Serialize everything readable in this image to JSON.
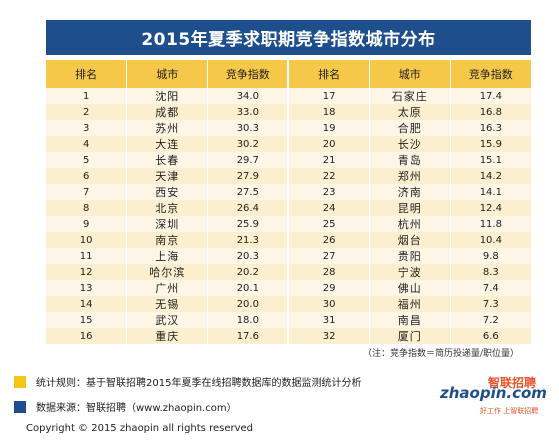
{
  "title": "2015年夏季求职期竞争指数城市分布",
  "table": {
    "headers": [
      "排名",
      "城市",
      "竞争指数",
      "排名",
      "城市",
      "竞争指数"
    ],
    "rows": [
      [
        "1",
        "沈阳",
        "34.0",
        "17",
        "石家庄",
        "17.4"
      ],
      [
        "2",
        "成都",
        "33.0",
        "18",
        "太原",
        "16.8"
      ],
      [
        "3",
        "苏州",
        "30.3",
        "19",
        "合肥",
        "16.3"
      ],
      [
        "4",
        "大连",
        "30.2",
        "20",
        "长沙",
        "15.9"
      ],
      [
        "5",
        "长春",
        "29.7",
        "21",
        "青岛",
        "15.1"
      ],
      [
        "6",
        "天津",
        "27.9",
        "22",
        "郑州",
        "14.2"
      ],
      [
        "7",
        "西安",
        "27.5",
        "23",
        "济南",
        "14.1"
      ],
      [
        "8",
        "北京",
        "26.4",
        "24",
        "昆明",
        "12.4"
      ],
      [
        "9",
        "深圳",
        "25.9",
        "25",
        "杭州",
        "11.8"
      ],
      [
        "10",
        "南京",
        "21.3",
        "26",
        "烟台",
        "10.4"
      ],
      [
        "11",
        "上海",
        "20.3",
        "27",
        "贵阳",
        "9.8"
      ],
      [
        "12",
        "哈尔滨",
        "20.2",
        "28",
        "宁波",
        "8.3"
      ],
      [
        "13",
        "广州",
        "20.1",
        "29",
        "佛山",
        "7.4"
      ],
      [
        "14",
        "无锡",
        "20.0",
        "30",
        "福州",
        "7.3"
      ],
      [
        "15",
        "武汉",
        "18.0",
        "31",
        "南昌",
        "7.2"
      ],
      [
        "16",
        "重庆",
        "17.6",
        "32",
        "厦门",
        "6.6"
      ]
    ]
  },
  "note": "（注：竞争指数＝简历投递量/职位量）",
  "legend": {
    "method": {
      "text": "统计规则：基于智联招聘2015年夏季在线招聘数据库的数据监测统计分析",
      "color": "#f5c518"
    },
    "source": {
      "text": "数据来源：智联招聘（www.zhaopin.com）",
      "color": "#1f4e8c"
    }
  },
  "logo": {
    "main": "zhaopin.com",
    "cn": "智联招聘",
    "slogan": "好工作 上智联招聘"
  },
  "copyright": "Copyright  ©  2015 zhaopin all rights reserved"
}
